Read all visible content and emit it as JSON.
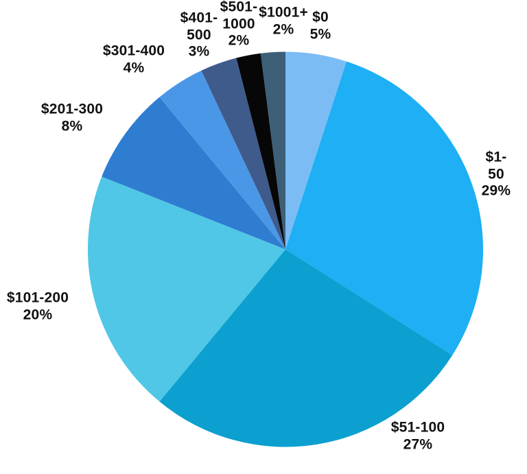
{
  "chart_data": {
    "type": "pie",
    "title": "",
    "unit": "percent",
    "total": 100,
    "direction": "clockwise",
    "start_angle_deg": 0,
    "legend": "none",
    "labels_position": "outside",
    "background_color": "#FFFFFF",
    "text_color": "#111111",
    "slices": [
      {
        "label": "$0",
        "pct": 5,
        "color": "#7CBCF4",
        "label_lines": [
          "$0",
          "5%"
        ]
      },
      {
        "label": "$1-50",
        "pct": 29,
        "color": "#1EAFF4",
        "label_lines": [
          "$1-50",
          "29%"
        ]
      },
      {
        "label": "$51-100",
        "pct": 27,
        "color": "#0BA0CF",
        "label_lines": [
          "$51-100",
          "27%"
        ]
      },
      {
        "label": "$101-200",
        "pct": 20,
        "color": "#50C7E6",
        "label_lines": [
          "$101-200",
          "20%"
        ]
      },
      {
        "label": "$201-300",
        "pct": 8,
        "color": "#2E7DD1",
        "label_lines": [
          "$201-300",
          "8%"
        ]
      },
      {
        "label": "$301-400",
        "pct": 4,
        "color": "#4A97E8",
        "label_lines": [
          "$301-400",
          "4%"
        ]
      },
      {
        "label": "$401-500",
        "pct": 3,
        "color": "#3E5B8C",
        "label_lines": [
          "$401-",
          "500",
          "3%"
        ]
      },
      {
        "label": "$501-1000",
        "pct": 2,
        "color": "#070707",
        "label_lines": [
          "$501-",
          "1000",
          "2%"
        ]
      },
      {
        "label": "$1001+",
        "pct": 2,
        "color": "#3D5F77",
        "label_lines": [
          "$1001+",
          "2%"
        ]
      }
    ]
  }
}
